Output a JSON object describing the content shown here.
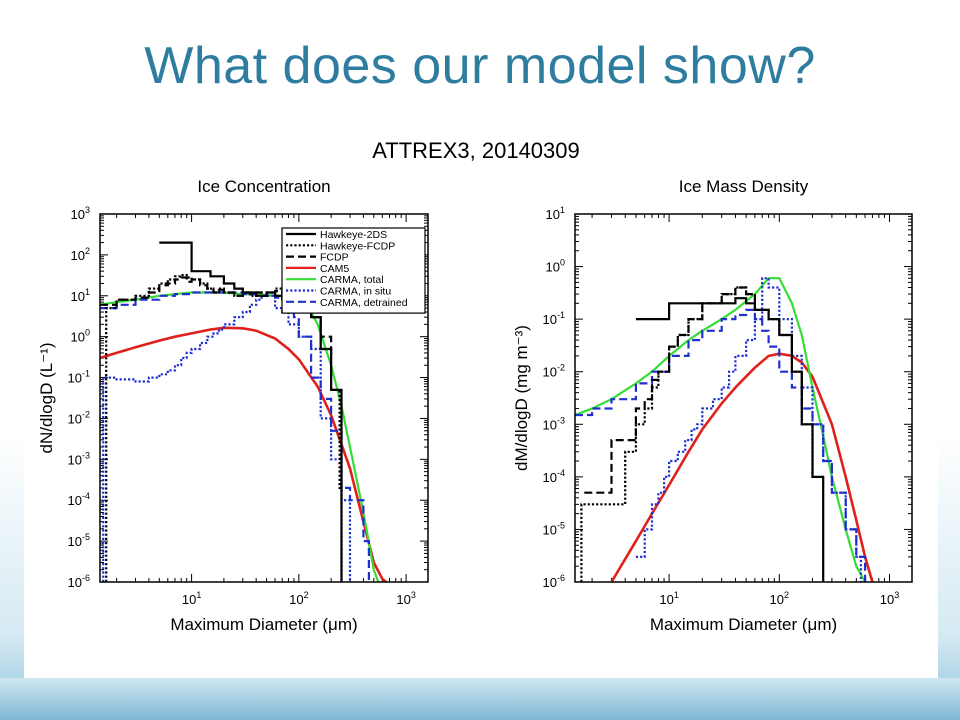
{
  "slide": {
    "title": "What does our model show?"
  },
  "figure": {
    "suptitle": "ATTREX3, 20140309"
  },
  "colors": {
    "title": "#2e7da0",
    "black": "#000000",
    "red": "#e0201b",
    "green": "#33dd33",
    "blue": "#2030d0"
  },
  "chart_data": [
    {
      "type": "line",
      "title": "Ice Concentration",
      "xlabel": "Maximum Diameter (μm)",
      "ylabel": "dN/dlogD (L⁻¹)",
      "xscale": "log",
      "yscale": "log",
      "xlim": [
        1.4,
        1600
      ],
      "ylim": [
        1e-06,
        1000
      ],
      "xticks": [
        {
          "v": 10,
          "b": "10",
          "e": "1"
        },
        {
          "v": 100,
          "b": "10",
          "e": "2"
        },
        {
          "v": 1000,
          "b": "10",
          "e": "3"
        }
      ],
      "yticks": [
        {
          "v": 1000,
          "b": "10",
          "e": "3"
        },
        {
          "v": 100,
          "b": "10",
          "e": "2"
        },
        {
          "v": 10,
          "b": "10",
          "e": "1"
        },
        {
          "v": 1,
          "b": "10",
          "e": "0"
        },
        {
          "v": 0.1,
          "b": "10",
          "e": "-1"
        },
        {
          "v": 0.01,
          "b": "10",
          "e": "-2"
        },
        {
          "v": 0.001,
          "b": "10",
          "e": "-3"
        },
        {
          "v": 0.0001,
          "b": "10",
          "e": "-4"
        },
        {
          "v": 1e-05,
          "b": "10",
          "e": "-5"
        },
        {
          "v": 1e-06,
          "b": "10",
          "e": "-6"
        }
      ],
      "legend_position": "top-right",
      "series": [
        {
          "name": "Hawkeye-2DS",
          "color": "#000000",
          "dash": "solid",
          "step": true,
          "x": [
            5,
            8,
            10,
            13,
            15,
            20,
            25,
            30,
            40,
            50,
            60,
            70,
            80,
            100,
            130,
            160,
            200,
            250,
            250
          ],
          "y": [
            200,
            200,
            40,
            40,
            30,
            20,
            15,
            12,
            10,
            12,
            10,
            9,
            8,
            5,
            3,
            0.5,
            0.05,
            0.0001,
            1e-06
          ]
        },
        {
          "name": "Hawkeye-FCDP",
          "color": "#000000",
          "dash": "dot",
          "step": true,
          "x": [
            1.6,
            1.6,
            2,
            3,
            4,
            5,
            6,
            7,
            8,
            9,
            10,
            12,
            14,
            16,
            18,
            20,
            25,
            30,
            35,
            40,
            45,
            50,
            60,
            70,
            80,
            100,
            130,
            160,
            200,
            240,
            250,
            250
          ],
          "y": [
            1e-06,
            5,
            8,
            10,
            15,
            20,
            25,
            30,
            32,
            28,
            25,
            20,
            15,
            12,
            15,
            12,
            10,
            12,
            10,
            12,
            10,
            12,
            15,
            8,
            12,
            5,
            3,
            0.5,
            0.05,
            0.0002,
            0.0001,
            1e-06
          ]
        },
        {
          "name": "FCDP",
          "color": "#000000",
          "dash": "dash",
          "step": true,
          "x": [
            1.4,
            2,
            3,
            4,
            5,
            6,
            7,
            8,
            9,
            10,
            12,
            14,
            16,
            18,
            20,
            25,
            30,
            35,
            40,
            45,
            50,
            60,
            70,
            80,
            100,
            130,
            160,
            200
          ],
          "y": [
            6,
            8,
            9,
            12,
            18,
            20,
            25,
            28,
            22,
            25,
            18,
            15,
            12,
            14,
            12,
            10,
            12,
            11,
            12,
            10,
            12,
            13,
            9,
            10,
            5,
            3,
            1,
            0.3
          ]
        },
        {
          "name": "CAM5",
          "color": "#e0201b",
          "dash": "solid",
          "step": false,
          "x": [
            1.4,
            2,
            3,
            5,
            7,
            10,
            15,
            20,
            30,
            40,
            60,
            80,
            100,
            150,
            200,
            300,
            400,
            500,
            600,
            650
          ],
          "y": [
            0.3,
            0.4,
            0.55,
            0.8,
            1.0,
            1.2,
            1.5,
            1.65,
            1.6,
            1.4,
            0.9,
            0.5,
            0.28,
            0.06,
            0.012,
            0.0006,
            3e-05,
            3e-06,
            1.2e-06,
            1e-06
          ]
        },
        {
          "name": "CARMA, total",
          "color": "#33dd33",
          "dash": "solid",
          "step": false,
          "x": [
            1.4,
            2,
            3,
            5,
            7,
            10,
            15,
            20,
            30,
            40,
            60,
            80,
            100,
            120,
            150,
            200,
            250,
            300,
            400,
            500,
            550
          ],
          "y": [
            6,
            7,
            8,
            10,
            11,
            12,
            12,
            12,
            11,
            11,
            10,
            10,
            9,
            6,
            2,
            0.2,
            0.02,
            0.002,
            5e-05,
            2e-06,
            1e-06
          ]
        },
        {
          "name": "CARMA, in situ",
          "color": "#2030d0",
          "dash": "dot",
          "step": true,
          "x": [
            1.5,
            1.5,
            2,
            3,
            4,
            5,
            6,
            7,
            8,
            9,
            10,
            12,
            14,
            16,
            18,
            20,
            25,
            30,
            35,
            40,
            45,
            50,
            60,
            70,
            80,
            100,
            130,
            160,
            200,
            250,
            300,
            300
          ],
          "y": [
            1e-06,
            0.1,
            0.09,
            0.08,
            0.1,
            0.12,
            0.15,
            0.2,
            0.3,
            0.4,
            0.5,
            0.7,
            1,
            1.2,
            1.5,
            2,
            3,
            4,
            6,
            8,
            10,
            10,
            5,
            4,
            2,
            1,
            0.5,
            0.01,
            0.001,
            0.0001,
            1e-05,
            1e-06
          ]
        },
        {
          "name": "CARMA, detrained",
          "color": "#2030d0",
          "dash": "dash",
          "step": true,
          "x": [
            1.4,
            2,
            3,
            5,
            7,
            10,
            15,
            20,
            30,
            40,
            50,
            60,
            70,
            80,
            90,
            100,
            130,
            160,
            200,
            250,
            300,
            400,
            450
          ],
          "y": [
            5,
            6,
            8,
            10,
            11,
            12,
            12,
            12,
            11,
            10,
            10,
            9,
            9,
            5,
            3,
            1,
            0.1,
            0.03,
            0.005,
            0.0002,
            0.0001,
            1e-05,
            1e-06
          ]
        }
      ]
    },
    {
      "type": "line",
      "title": "Ice Mass Density",
      "xlabel": "Maximum Diameter (μm)",
      "ylabel": "dM/dlogD (mg m⁻³)",
      "xscale": "log",
      "yscale": "log",
      "xlim": [
        1.4,
        1600
      ],
      "ylim": [
        1e-06,
        10
      ],
      "xticks": [
        {
          "v": 10,
          "b": "10",
          "e": "1"
        },
        {
          "v": 100,
          "b": "10",
          "e": "2"
        },
        {
          "v": 1000,
          "b": "10",
          "e": "3"
        }
      ],
      "yticks": [
        {
          "v": 10,
          "b": "10",
          "e": "1"
        },
        {
          "v": 1,
          "b": "10",
          "e": "0"
        },
        {
          "v": 0.1,
          "b": "10",
          "e": "-1"
        },
        {
          "v": 0.01,
          "b": "10",
          "e": "-2"
        },
        {
          "v": 0.001,
          "b": "10",
          "e": "-3"
        },
        {
          "v": 0.0001,
          "b": "10",
          "e": "-4"
        },
        {
          "v": 1e-05,
          "b": "10",
          "e": "-5"
        },
        {
          "v": 1e-06,
          "b": "10",
          "e": "-6"
        }
      ],
      "series": [
        {
          "name": "Hawkeye-2DS",
          "color": "#000000",
          "dash": "solid",
          "step": true,
          "x": [
            5,
            8,
            10,
            15,
            20,
            30,
            40,
            50,
            60,
            80,
            100,
            130,
            160,
            200,
            250,
            250
          ],
          "y": [
            0.1,
            0.1,
            0.2,
            0.2,
            0.2,
            0.2,
            0.25,
            0.2,
            0.15,
            0.1,
            0.05,
            0.01,
            0.001,
            0.0001,
            1e-06,
            1e-06
          ]
        },
        {
          "name": "Hawkeye-FCDP",
          "color": "#000000",
          "dash": "dot",
          "step": true,
          "x": [
            1.6,
            1.6,
            3,
            4,
            5,
            6,
            7,
            8,
            10,
            12,
            15,
            20,
            25,
            30,
            40,
            50,
            60,
            80,
            100,
            130,
            160,
            200
          ],
          "y": [
            1e-06,
            3e-05,
            3e-05,
            0.0003,
            0.001,
            0.002,
            0.005,
            0.01,
            0.03,
            0.05,
            0.1,
            0.2,
            0.2,
            0.3,
            0.4,
            0.3,
            0.15,
            0.1,
            0.05,
            0.01,
            0.001,
            0.0001
          ]
        },
        {
          "name": "FCDP",
          "color": "#000000",
          "dash": "dash",
          "step": true,
          "x": [
            1.7,
            2,
            3,
            4,
            5,
            6,
            7,
            8,
            10,
            12,
            15,
            20,
            25,
            30,
            40,
            50,
            60
          ],
          "y": [
            5e-05,
            5e-05,
            0.0005,
            0.0005,
            0.002,
            0.003,
            0.007,
            0.01,
            0.03,
            0.05,
            0.1,
            0.2,
            0.2,
            0.3,
            0.4,
            0.3,
            0.2
          ]
        },
        {
          "name": "CAM5",
          "color": "#e0201b",
          "dash": "solid",
          "step": false,
          "x": [
            3,
            5,
            7,
            10,
            15,
            20,
            30,
            40,
            60,
            80,
            100,
            130,
            160,
            200,
            300,
            400,
            500,
            600,
            700
          ],
          "y": [
            1e-06,
            6e-06,
            2e-05,
            7e-05,
            0.0003,
            0.0008,
            0.0025,
            0.005,
            0.012,
            0.02,
            0.022,
            0.02,
            0.015,
            0.008,
            0.001,
            0.0001,
            1.5e-05,
            3e-06,
            1e-06
          ]
        },
        {
          "name": "CARMA, total",
          "color": "#33dd33",
          "dash": "solid",
          "step": false,
          "x": [
            1.4,
            2,
            3,
            5,
            7,
            10,
            15,
            20,
            30,
            40,
            60,
            80,
            100,
            130,
            160,
            200,
            250,
            300,
            400,
            500,
            600
          ],
          "y": [
            0.0015,
            0.002,
            0.003,
            0.006,
            0.01,
            0.02,
            0.04,
            0.06,
            0.1,
            0.15,
            0.3,
            0.6,
            0.6,
            0.2,
            0.05,
            0.005,
            0.0006,
            0.0001,
            1e-05,
            2e-06,
            1e-06
          ]
        },
        {
          "name": "CARMA, in situ",
          "color": "#2030d0",
          "dash": "dot",
          "step": true,
          "x": [
            5,
            6,
            7,
            8,
            9,
            10,
            12,
            14,
            16,
            18,
            20,
            25,
            30,
            35,
            40,
            50,
            60,
            70,
            80,
            100,
            130,
            160,
            200,
            250,
            300,
            400,
            500,
            550
          ],
          "y": [
            3e-06,
            1e-05,
            3e-05,
            5e-05,
            0.0001,
            0.0002,
            0.0003,
            0.0005,
            0.0008,
            0.001,
            0.002,
            0.003,
            0.005,
            0.01,
            0.02,
            0.04,
            0.1,
            0.6,
            0.4,
            0.1,
            0.02,
            0.005,
            0.001,
            0.0002,
            5e-05,
            1e-05,
            3e-06,
            1e-06
          ]
        },
        {
          "name": "CARMA, detrained",
          "color": "#2030d0",
          "dash": "dash",
          "step": true,
          "x": [
            1.4,
            2,
            3,
            5,
            7,
            10,
            15,
            20,
            30,
            40,
            50,
            60,
            70,
            80,
            100,
            130,
            160,
            200,
            250,
            300,
            400,
            500,
            600
          ],
          "y": [
            0.0015,
            0.002,
            0.003,
            0.006,
            0.01,
            0.02,
            0.04,
            0.06,
            0.1,
            0.12,
            0.15,
            0.1,
            0.06,
            0.03,
            0.01,
            0.005,
            0.002,
            0.001,
            0.0002,
            5e-05,
            1e-05,
            3e-06,
            1e-06
          ]
        }
      ]
    }
  ]
}
